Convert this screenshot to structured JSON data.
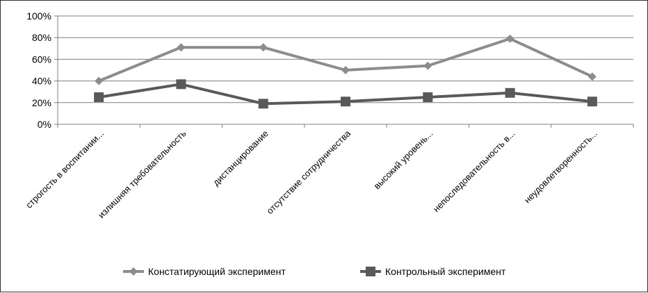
{
  "chart_data": {
    "type": "line",
    "categories": [
      "строгость в воспитании...",
      "излишняя требовательность",
      "дистанцирование",
      "отсутствие сотрудничества",
      "высокий уровень...",
      "непоследовательность в...",
      "неудовлетворенность..."
    ],
    "series": [
      {
        "name": "Констатирующий эксперимент",
        "values": [
          40,
          71,
          71,
          50,
          54,
          79,
          44
        ],
        "color": "#8c8c8c",
        "marker": "diamond"
      },
      {
        "name": "Контрольный эксперимент",
        "values": [
          25,
          37,
          19,
          21,
          25,
          29,
          21
        ],
        "color": "#595959",
        "marker": "square"
      }
    ],
    "yticks": [
      "0%",
      "20%",
      "40%",
      "60%",
      "80%",
      "100%"
    ],
    "ylim": [
      0,
      100
    ],
    "grid": true,
    "legend": "bottom",
    "title": "",
    "xlabel": "",
    "ylabel": ""
  }
}
